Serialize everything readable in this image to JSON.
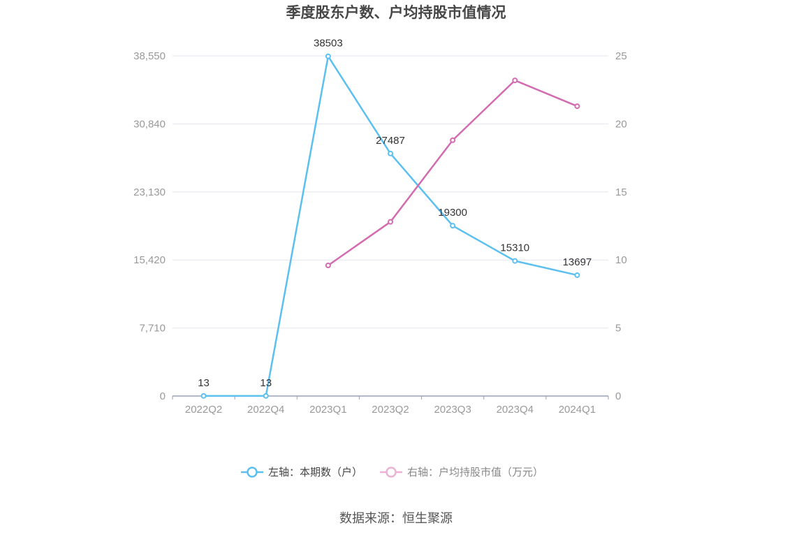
{
  "chart_data": {
    "type": "line",
    "title": "季度股东户数、户均持股市值情况",
    "categories": [
      "2022Q2",
      "2022Q4",
      "2023Q1",
      "2023Q2",
      "2023Q3",
      "2023Q4",
      "2024Q1"
    ],
    "y_left": {
      "ticks": [
        "0",
        "7,710",
        "15,420",
        "23,130",
        "30,840",
        "38,550"
      ],
      "ylim": [
        0,
        38550
      ]
    },
    "y_right": {
      "ticks": [
        "0",
        "5",
        "10",
        "15",
        "20",
        "25"
      ],
      "ylim": [
        0,
        25
      ]
    },
    "series": [
      {
        "name": "左轴：本期数（户）",
        "axis": "left",
        "color": "#5bc0f0",
        "values": [
          13,
          13,
          38503,
          27487,
          19300,
          15310,
          13697
        ],
        "labels": [
          "13",
          "13",
          "38503",
          "27487",
          "19300",
          "15310",
          "13697"
        ]
      },
      {
        "name": "右轴：户均持股市值（万元）",
        "axis": "right",
        "color": "#d36bb0",
        "values": [
          null,
          null,
          9.6,
          12.8,
          18.8,
          23.2,
          21.3
        ]
      }
    ],
    "grid": true,
    "legend_position": "bottom"
  },
  "source": "数据来源：恒生聚源"
}
